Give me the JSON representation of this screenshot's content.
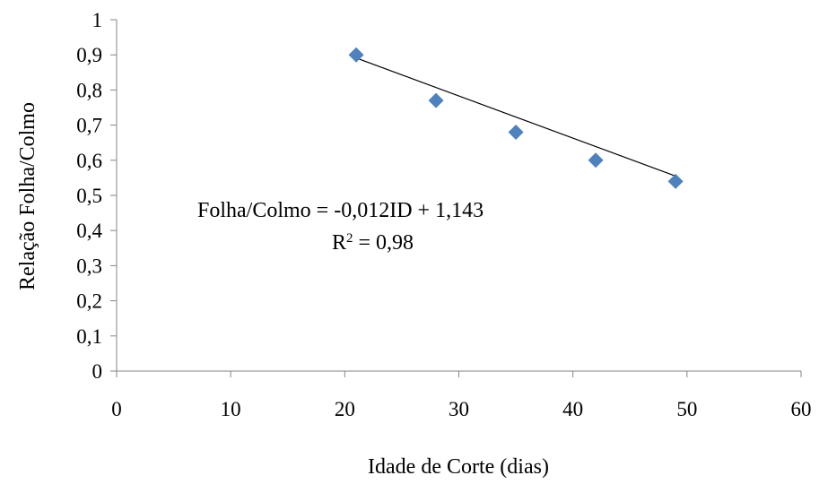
{
  "chart_data": {
    "type": "scatter",
    "xlabel": "Idade de Corte (dias)",
    "ylabel": "Relação Folha/Colmo",
    "xlim": [
      0,
      60
    ],
    "ylim": [
      0,
      1
    ],
    "x_ticks": [
      0,
      10,
      20,
      30,
      40,
      50,
      60
    ],
    "x_tick_labels": [
      "0",
      "10",
      "20",
      "30",
      "40",
      "50",
      "60"
    ],
    "y_ticks": [
      0,
      0.1,
      0.2,
      0.3,
      0.4,
      0.5,
      0.6,
      0.7,
      0.8,
      0.9,
      1
    ],
    "y_tick_labels": [
      "0",
      "0,1",
      "0,2",
      "0,3",
      "0,4",
      "0,5",
      "0,6",
      "0,7",
      "0,8",
      "0,9",
      "1"
    ],
    "series": [
      {
        "x": [
          21,
          28,
          35,
          42,
          49
        ],
        "y": [
          0.9,
          0.77,
          0.68,
          0.6,
          0.54
        ],
        "color": "#4F81BD",
        "marker": "diamond"
      }
    ],
    "trendline": {
      "type": "linear",
      "slope": -0.012,
      "intercept": 1.143,
      "x_range": [
        21,
        49
      ],
      "color": "#000000"
    },
    "annotations": {
      "equation": "Folha/Colmo = -0,012ID + 1,143",
      "r2_label": "R",
      "r2_sup": "2",
      "r2_value": " = 0,98"
    },
    "grid": false,
    "legend": "none"
  }
}
